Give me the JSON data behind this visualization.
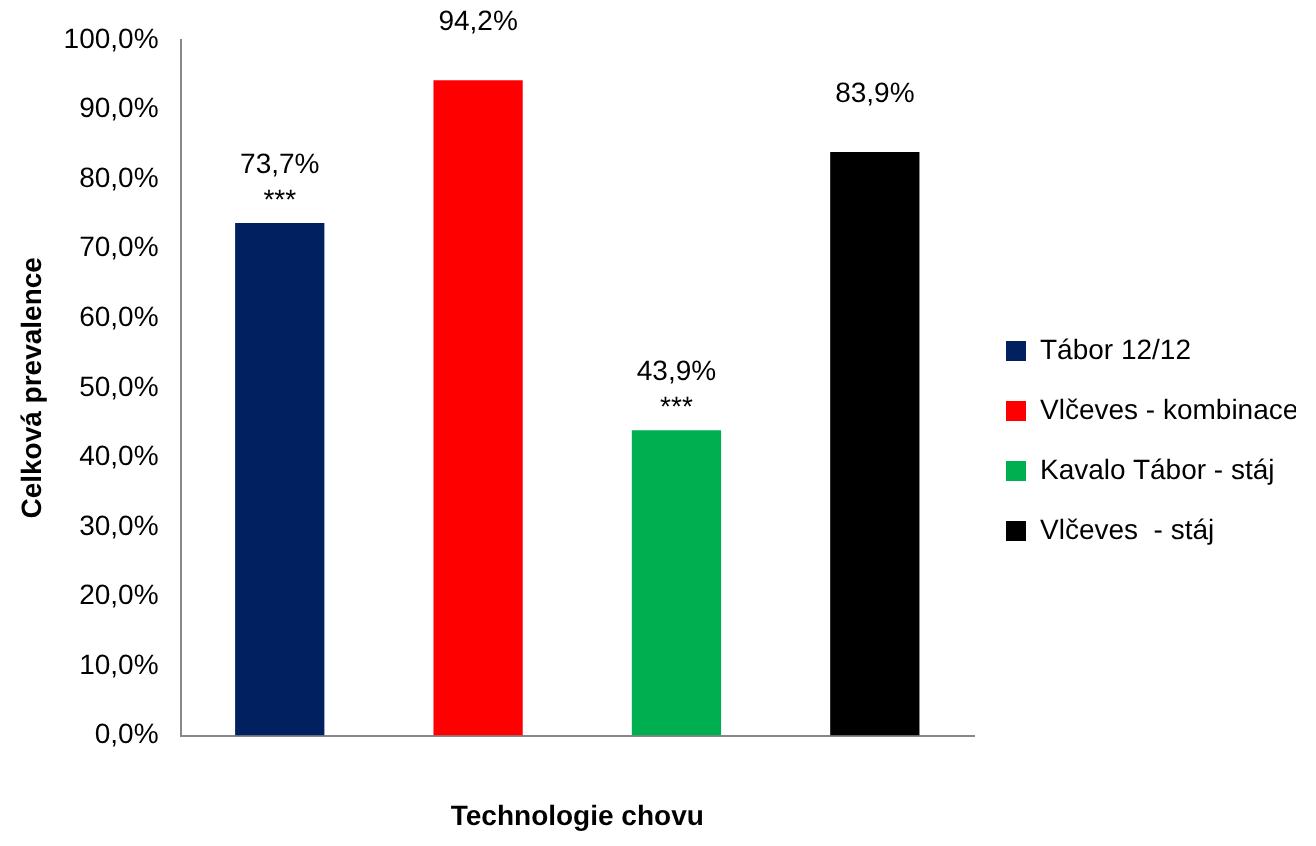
{
  "chart_data": {
    "type": "bar",
    "xlabel": "Technologie chovu",
    "ylabel": "Celková prevalence",
    "categories": [
      null,
      null,
      null,
      null
    ],
    "series": [
      {
        "name": "Tábor 12/12",
        "color": "#002060",
        "values": [
          73.7,
          null,
          null,
          null
        ],
        "value_labels": [
          "73,7%",
          null,
          null,
          null
        ]
      },
      {
        "name": "Vlčeves - kombinace",
        "color": "#ff0000",
        "values": [
          null,
          94.2,
          null,
          null
        ],
        "value_labels": [
          null,
          "94,2%",
          null,
          null
        ]
      },
      {
        "name": "Kavalo Tábor - stáj",
        "color": "#00b050",
        "values": [
          null,
          null,
          43.9,
          null
        ],
        "value_labels": [
          null,
          null,
          "43,9%",
          null
        ]
      },
      {
        "name": "Vlčeves  - stáj",
        "color": "#000000",
        "values": [
          null,
          null,
          null,
          83.9
        ],
        "value_labels": [
          null,
          null,
          null,
          "83,9%"
        ]
      }
    ],
    "annotations": [
      {
        "text": "***",
        "y": 73.7
      },
      {
        "text": "***",
        "y": 43.9
      }
    ],
    "ylim": [
      0,
      100
    ],
    "yticks": [
      {
        "value": 0,
        "label": "0,0%"
      },
      {
        "value": 10,
        "label": "10,0%"
      },
      {
        "value": 20,
        "label": "20,0%"
      },
      {
        "value": 30,
        "label": "30,0%"
      },
      {
        "value": 40,
        "label": "40,0%"
      },
      {
        "value": 50,
        "label": "50,0%"
      },
      {
        "value": 60,
        "label": "60,0%"
      },
      {
        "value": 70,
        "label": "70,0%"
      },
      {
        "value": 80,
        "label": "80,0%"
      },
      {
        "value": 90,
        "label": "90,0%"
      },
      {
        "value": 100,
        "label": "100,0%"
      }
    ],
    "grid": false,
    "legend": "right"
  }
}
